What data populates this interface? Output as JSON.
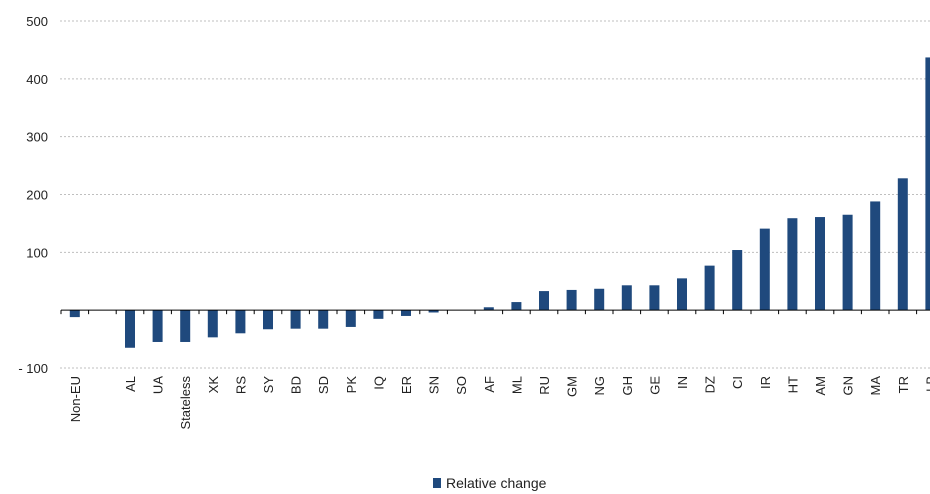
{
  "chart_data": {
    "type": "bar",
    "categories": [
      "Non-EU",
      "",
      "AL",
      "UA",
      "Stateless",
      "XK",
      "RS",
      "SY",
      "BD",
      "SD",
      "PK",
      "IQ",
      "ER",
      "SN",
      "SO",
      "AF",
      "ML",
      "RU",
      "GM",
      "NG",
      "GH",
      "GE",
      "IN",
      "DZ",
      "CI",
      "IR",
      "HT",
      "AM",
      "GN",
      "MA",
      "TR",
      "LB"
    ],
    "series": [
      {
        "name": "Relative change",
        "values": [
          -12,
          null,
          -65,
          -55,
          -55,
          -47,
          -40,
          -33,
          -32,
          -32,
          -29,
          -15,
          -10,
          -4,
          0,
          5,
          14,
          33,
          35,
          37,
          43,
          43,
          55,
          77,
          104,
          141,
          159,
          161,
          165,
          188,
          228,
          437
        ]
      }
    ],
    "ylim": [
      -100,
      500
    ],
    "yticks": [
      -100,
      100,
      200,
      300,
      400,
      500
    ],
    "ytick_labels": [
      "- 100",
      "100",
      "200",
      "300",
      "400",
      "500"
    ],
    "grid": true,
    "legend_position": "bottom-center",
    "colors": {
      "bar": "#1F497D",
      "grid": "#BFBFBF",
      "axis": "#000000"
    }
  }
}
